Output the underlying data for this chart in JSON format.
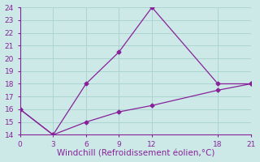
{
  "line1_x": [
    0,
    3,
    6,
    9,
    12,
    18,
    21
  ],
  "line1_y": [
    16.0,
    14.0,
    18.0,
    20.5,
    24.0,
    18.0,
    18.0
  ],
  "line2_x": [
    0,
    3,
    6,
    9,
    12,
    18,
    21
  ],
  "line2_y": [
    16.0,
    14.0,
    15.0,
    15.8,
    16.3,
    17.5,
    18.0
  ],
  "line_color": "#882299",
  "marker": "D",
  "marker_size": 2.5,
  "xlabel": "Windchill (Refroidissement éolien,°C)",
  "xlim": [
    0,
    21
  ],
  "ylim": [
    14,
    24
  ],
  "xticks": [
    0,
    3,
    6,
    9,
    12,
    18,
    21
  ],
  "yticks": [
    14,
    15,
    16,
    17,
    18,
    19,
    20,
    21,
    22,
    23,
    24
  ],
  "background_color": "#cce9e8",
  "grid_color": "#aad4d3",
  "spine_color": "#882299",
  "tick_label_color": "#882299",
  "xlabel_color": "#882299",
  "xlabel_fontsize": 7.5,
  "tick_fontsize": 6.5
}
